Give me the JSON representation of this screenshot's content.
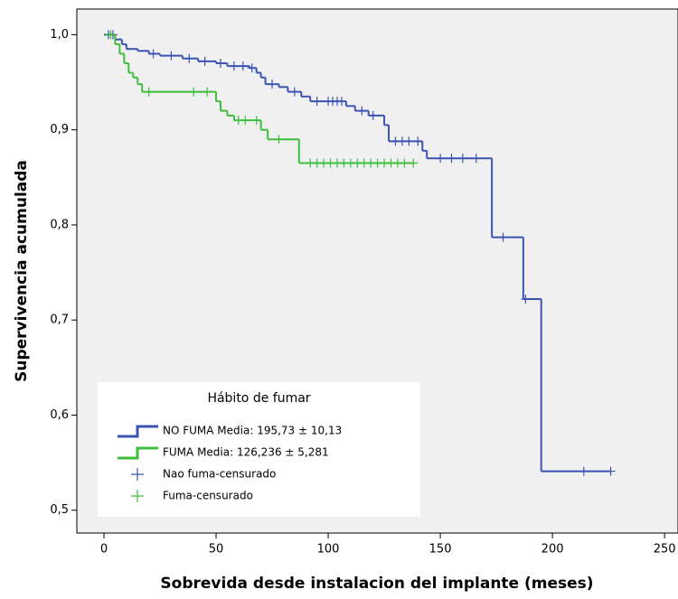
{
  "chart_data": {
    "type": "line",
    "step": true,
    "xlabel": "Sobrevida desde instalacion del implante (meses)",
    "ylabel": "Supervivencia acumulada",
    "xlim": [
      -12.1,
      256
    ],
    "ylim": [
      0.476,
      1.027
    ],
    "xticks": [
      0,
      50,
      100,
      150,
      200,
      250
    ],
    "yticks": [
      {
        "value": 0.5,
        "label": "0,5"
      },
      {
        "value": 0.6,
        "label": "0,6"
      },
      {
        "value": 0.7,
        "label": "0,7"
      },
      {
        "value": 0.8,
        "label": "0,8"
      },
      {
        "value": 0.9,
        "label": "0,9"
      },
      {
        "value": 1,
        "label": "1,0"
      }
    ],
    "legend_title": "Hábito de fumar",
    "legend": "lower left",
    "series": [
      {
        "name": "NO FUMA  Media: 195,73 ± 10,13",
        "color": "#3b53b3",
        "marker": "line",
        "x": [
          0,
          5,
          8,
          10,
          15,
          20,
          25,
          35,
          42,
          50,
          55,
          65,
          68,
          70,
          72,
          78,
          82,
          88,
          92,
          108,
          112,
          118,
          125,
          127,
          142,
          144,
          173,
          187,
          195,
          226
        ],
        "values": [
          1.0,
          0.995,
          0.99,
          0.985,
          0.983,
          0.98,
          0.978,
          0.975,
          0.972,
          0.97,
          0.967,
          0.965,
          0.96,
          0.955,
          0.948,
          0.945,
          0.94,
          0.935,
          0.93,
          0.925,
          0.92,
          0.915,
          0.905,
          0.888,
          0.878,
          0.87,
          0.787,
          0.722,
          0.541,
          0.541
        ]
      },
      {
        "name": "FUMA Media: 126,236 ± 5,281",
        "color": "#3dbf3d",
        "marker": "line",
        "x": [
          0,
          5,
          7,
          9,
          11,
          13,
          15,
          17,
          50,
          52,
          55,
          58,
          70,
          73,
          87,
          138
        ],
        "values": [
          1.0,
          0.99,
          0.98,
          0.97,
          0.96,
          0.955,
          0.948,
          0.94,
          0.93,
          0.92,
          0.915,
          0.91,
          0.9,
          0.89,
          0.865,
          0.865
        ]
      },
      {
        "name": "Nao fuma-censurado",
        "color": "#3b53b3",
        "marker": "plus",
        "x": [
          2,
          4,
          22,
          30,
          38,
          45,
          52,
          58,
          62,
          66,
          75,
          85,
          95,
          100,
          102,
          104,
          106,
          115,
          120,
          130,
          133,
          136,
          140,
          150,
          155,
          160,
          166,
          178,
          188,
          214,
          226
        ],
        "values": [
          1.0,
          1.0,
          0.98,
          0.978,
          0.975,
          0.972,
          0.97,
          0.967,
          0.967,
          0.965,
          0.948,
          0.94,
          0.93,
          0.93,
          0.93,
          0.93,
          0.93,
          0.92,
          0.915,
          0.888,
          0.888,
          0.888,
          0.888,
          0.87,
          0.87,
          0.87,
          0.87,
          0.787,
          0.722,
          0.541,
          0.541
        ]
      },
      {
        "name": "Fuma-censurado",
        "color": "#3dbf3d",
        "marker": "plus",
        "x": [
          3,
          20,
          40,
          46,
          60,
          63,
          68,
          78,
          92,
          95,
          98,
          101,
          104,
          107,
          110,
          113,
          116,
          119,
          122,
          125,
          128,
          131,
          134,
          138
        ],
        "values": [
          1.0,
          0.94,
          0.94,
          0.94,
          0.91,
          0.91,
          0.91,
          0.89,
          0.865,
          0.865,
          0.865,
          0.865,
          0.865,
          0.865,
          0.865,
          0.865,
          0.865,
          0.865,
          0.865,
          0.865,
          0.865,
          0.865,
          0.865,
          0.865
        ]
      }
    ]
  }
}
